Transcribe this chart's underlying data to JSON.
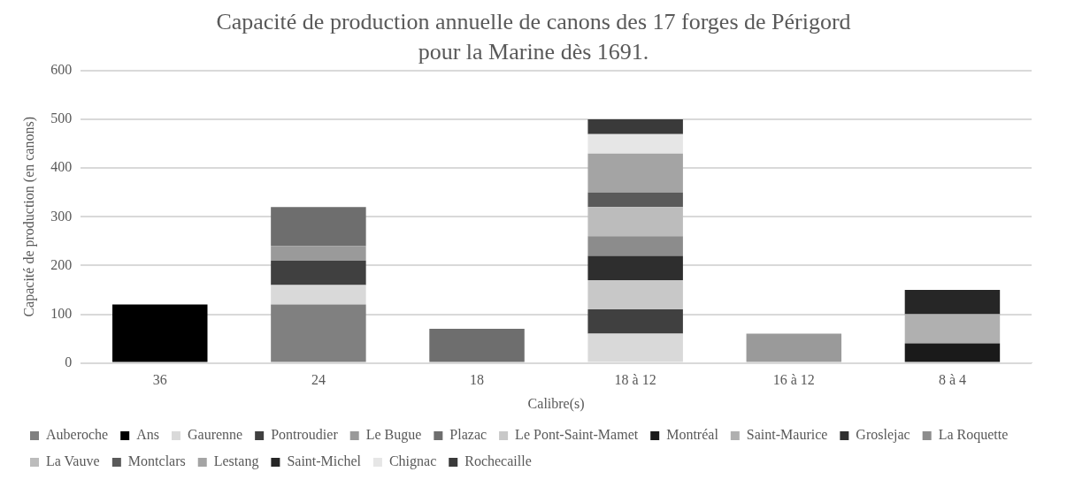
{
  "chart_data": {
    "type": "bar",
    "title": "Capacité de production annuelle de canons des 17 forges de Périgord pour la Marine dès 1691.",
    "xlabel": "Calibre(s)",
    "ylabel": "Capacité de production (en canons)",
    "categories": [
      "36",
      "24",
      "18",
      "18 à 12",
      "16 à 12",
      "8 à 4"
    ],
    "stacked": true,
    "ylim": [
      0,
      600
    ],
    "yticks": [
      0,
      100,
      200,
      300,
      400,
      500,
      600
    ],
    "grid": "y",
    "legend": "bottom",
    "series": [
      {
        "name": "Auberoche",
        "color": "#808080",
        "values": [
          null,
          120,
          null,
          null,
          null,
          null
        ]
      },
      {
        "name": "Ans",
        "color": "#000000",
        "values": [
          120,
          null,
          null,
          null,
          null,
          null
        ]
      },
      {
        "name": "Gaurenne",
        "color": "#d9d9d9",
        "values": [
          null,
          40,
          null,
          60,
          null,
          null
        ]
      },
      {
        "name": "Pontroudier",
        "color": "#404040",
        "values": [
          null,
          50,
          null,
          50,
          null,
          null
        ]
      },
      {
        "name": "Le Bugue",
        "color": "#9a9a9a",
        "values": [
          null,
          30,
          null,
          null,
          60,
          null
        ]
      },
      {
        "name": "Plazac",
        "color": "#6e6e6e",
        "values": [
          null,
          80,
          70,
          null,
          null,
          null
        ]
      },
      {
        "name": "Le Pont-Saint-Mamet",
        "color": "#c8c8c8",
        "values": [
          null,
          null,
          null,
          60,
          null,
          null
        ]
      },
      {
        "name": "Montréal",
        "color": "#1a1a1a",
        "values": [
          null,
          null,
          null,
          null,
          null,
          40
        ]
      },
      {
        "name": "Saint-Maurice",
        "color": "#b0b0b0",
        "values": [
          null,
          null,
          null,
          null,
          null,
          60
        ]
      },
      {
        "name": "Groslejac",
        "color": "#2e2e2e",
        "values": [
          null,
          null,
          null,
          50,
          null,
          null
        ]
      },
      {
        "name": "La Roquette",
        "color": "#8c8c8c",
        "values": [
          null,
          null,
          null,
          40,
          null,
          null
        ]
      },
      {
        "name": "La Vauve",
        "color": "#bcbcbc",
        "values": [
          null,
          null,
          null,
          60,
          null,
          null
        ]
      },
      {
        "name": "Montclars",
        "color": "#5a5a5a",
        "values": [
          null,
          null,
          null,
          30,
          null,
          null
        ]
      },
      {
        "name": "Lestang",
        "color": "#a4a4a4",
        "values": [
          null,
          null,
          null,
          80,
          null,
          null
        ]
      },
      {
        "name": "Saint-Michel",
        "color": "#262626",
        "values": [
          null,
          null,
          null,
          null,
          null,
          50
        ]
      },
      {
        "name": "Chignac",
        "color": "#e6e6e6",
        "values": [
          null,
          null,
          null,
          40,
          null,
          null
        ]
      },
      {
        "name": "Rochecaille",
        "color": "#3a3a3a",
        "values": [
          null,
          null,
          null,
          30,
          null,
          null
        ]
      }
    ]
  }
}
